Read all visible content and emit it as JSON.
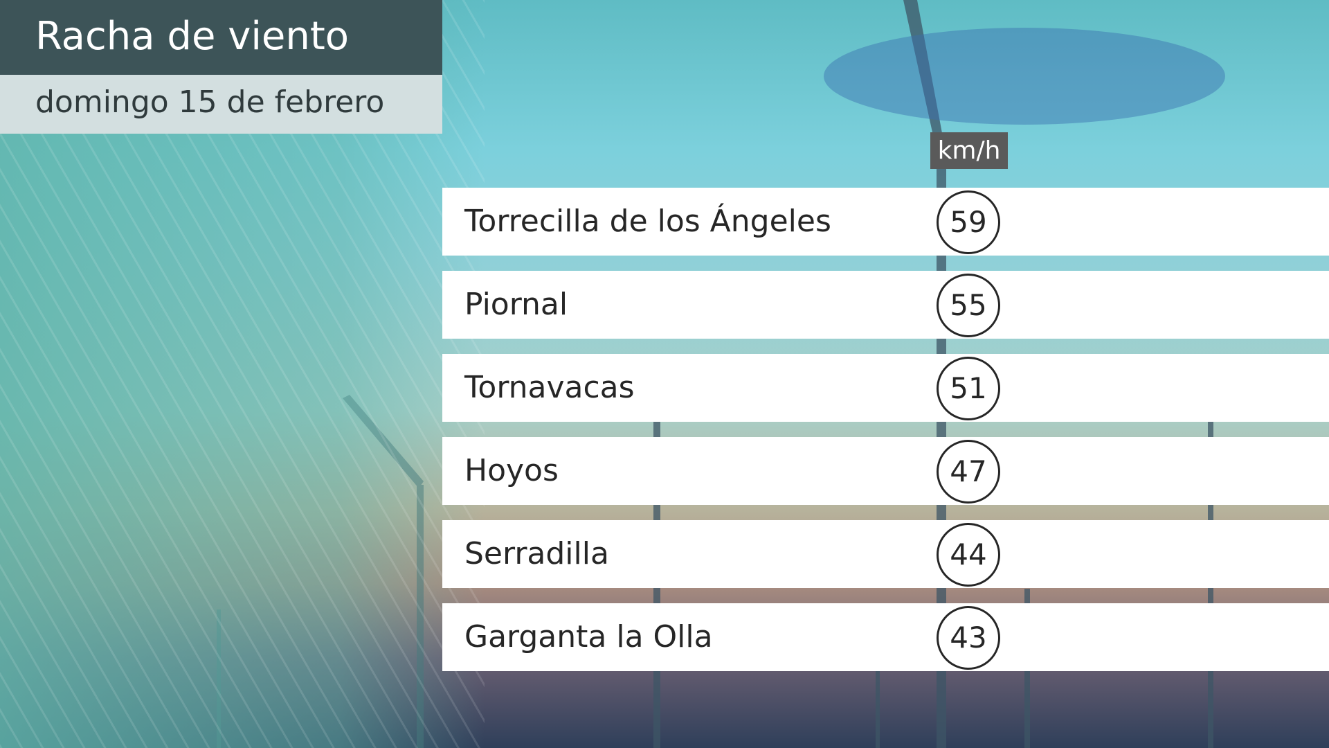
{
  "header": {
    "title": "Racha de viento",
    "subtitle": "domingo 15 de febrero"
  },
  "unit": "km/h",
  "rows": [
    {
      "name": "Torrecilla de los Ángeles",
      "value": "59"
    },
    {
      "name": "Piornal",
      "value": "55"
    },
    {
      "name": "Tornavacas",
      "value": "51"
    },
    {
      "name": "Hoyos",
      "value": "47"
    },
    {
      "name": "Serradilla",
      "value": "44"
    },
    {
      "name": "Garganta la Olla",
      "value": "43"
    }
  ],
  "colors": {
    "title_bar": "#3d5458",
    "subtitle_bar": "#d3dfe0",
    "unit_badge": "#5a5a5a"
  }
}
